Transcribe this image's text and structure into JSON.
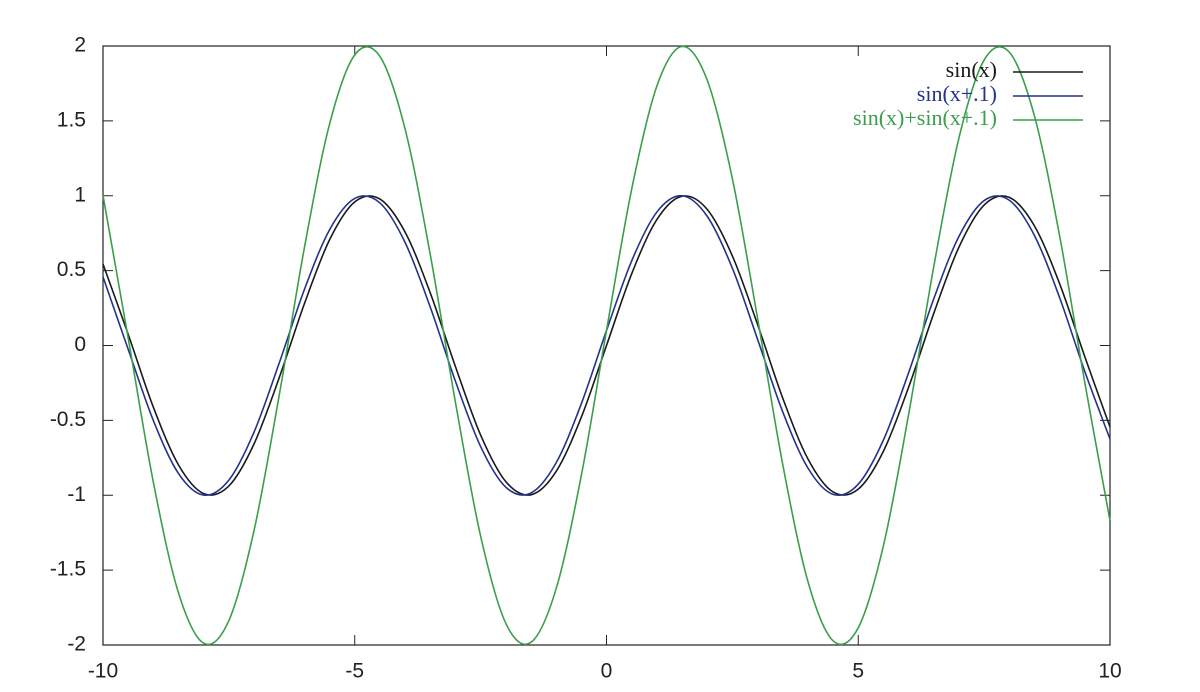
{
  "chart_data": {
    "type": "line",
    "x": [
      -10,
      -9.5,
      -9,
      -8.5,
      -8,
      -7.5,
      -7,
      -6.5,
      -6,
      -5.5,
      -5,
      -4.5,
      -4,
      -3.5,
      -3,
      -2.5,
      -2,
      -1.5,
      -1,
      -0.5,
      0,
      0.5,
      1,
      1.5,
      2,
      2.5,
      3,
      3.5,
      4,
      4.5,
      5,
      5.5,
      6,
      6.5,
      7,
      7.5,
      8,
      8.5,
      9,
      9.5,
      10
    ],
    "series": [
      {
        "name": "sin(x)",
        "color": "#1a1a1a",
        "values": [
          0.544,
          0.075,
          -0.412,
          -0.798,
          -0.989,
          -0.938,
          -0.657,
          -0.215,
          0.279,
          0.706,
          0.959,
          0.978,
          0.757,
          0.351,
          -0.141,
          -0.598,
          -0.909,
          -0.997,
          -0.841,
          -0.479,
          0,
          0.479,
          0.841,
          0.997,
          0.909,
          0.598,
          0.141,
          -0.351,
          -0.757,
          -0.978,
          -0.959,
          -0.706,
          -0.279,
          0.215,
          0.657,
          0.938,
          0.989,
          0.798,
          0.412,
          -0.075,
          -0.544
        ]
      },
      {
        "name": "sin(x+.1)",
        "color": "#22328f",
        "values": [
          0.458,
          -0.025,
          -0.501,
          -0.855,
          -0.999,
          -0.899,
          -0.578,
          -0.117,
          0.374,
          0.773,
          0.982,
          0.952,
          0.688,
          0.256,
          -0.239,
          -0.675,
          -0.946,
          -0.985,
          -0.783,
          -0.389,
          0.1,
          0.565,
          0.891,
          1.0,
          0.863,
          0.516,
          0.042,
          -0.443,
          -0.818,
          -0.994,
          -0.926,
          -0.631,
          -0.182,
          0.312,
          0.729,
          0.968,
          0.97,
          0.734,
          0.319,
          -0.174,
          -0.625
        ]
      },
      {
        "name": "sin(x)+sin(x+.1)",
        "color": "#3a9f4c",
        "values": [
          1.002,
          0.05,
          -0.913,
          -1.653,
          -1.988,
          -1.837,
          -1.235,
          -0.332,
          0.653,
          1.479,
          1.941,
          1.93,
          1.445,
          0.607,
          -0.38,
          -1.273,
          -1.855,
          -1.982,
          -1.624,
          -0.868,
          0.1,
          1.044,
          1.732,
          1.997,
          1.772,
          1.114,
          0.183,
          -0.794,
          -1.575,
          -1.972,
          -1.885,
          -1.337,
          -0.461,
          0.527,
          1.386,
          1.906,
          1.959,
          1.532,
          0.731,
          -0.249,
          -1.169
        ]
      }
    ],
    "xlim": [
      -10,
      10
    ],
    "xticks": [
      -10,
      -5,
      0,
      5,
      10
    ],
    "ylim": [
      -2,
      2
    ],
    "yticks": [
      -2,
      -1.5,
      -1,
      -0.5,
      0,
      0.5,
      1,
      1.5,
      2
    ],
    "legend": "upper right"
  }
}
